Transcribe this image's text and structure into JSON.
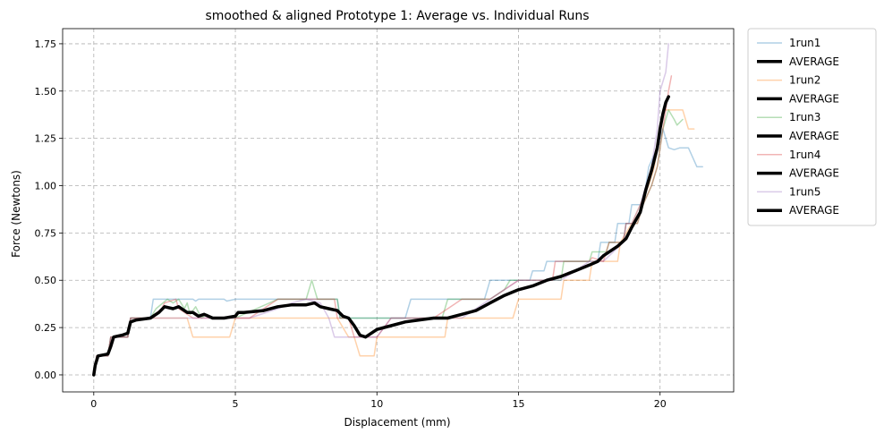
{
  "chart_data": {
    "type": "line",
    "title": "smoothed & aligned Prototype 1: Average vs. Individual Runs",
    "xlabel": "Displacement (mm)",
    "ylabel": "Force (Newtons)",
    "xlim": [
      -1.1,
      22.6
    ],
    "ylim": [
      -0.09,
      1.83
    ],
    "xticks": [
      0,
      5,
      10,
      15,
      20
    ],
    "xtick_labels": [
      "0",
      "5",
      "10",
      "15",
      "20"
    ],
    "yticks": [
      0.0,
      0.25,
      0.5,
      0.75,
      1.0,
      1.25,
      1.5,
      1.75
    ],
    "ytick_labels": [
      "0.00",
      "0.25",
      "0.50",
      "0.75",
      "1.00",
      "1.25",
      "1.50",
      "1.75"
    ],
    "grid": true,
    "legend_position": "outside-right",
    "legend": [
      {
        "label": "1run1",
        "color": "#1f77b4",
        "alpha": 0.35,
        "width": 1.5
      },
      {
        "label": "AVERAGE",
        "color": "#000000",
        "alpha": 1,
        "width": 3.5
      },
      {
        "label": "1run2",
        "color": "#ff7f0e",
        "alpha": 0.35,
        "width": 1.5
      },
      {
        "label": "AVERAGE",
        "color": "#000000",
        "alpha": 1,
        "width": 3.5
      },
      {
        "label": "1run3",
        "color": "#2ca02c",
        "alpha": 0.35,
        "width": 1.5
      },
      {
        "label": "AVERAGE",
        "color": "#000000",
        "alpha": 1,
        "width": 3.5
      },
      {
        "label": "1run4",
        "color": "#d62728",
        "alpha": 0.35,
        "width": 1.5
      },
      {
        "label": "AVERAGE",
        "color": "#000000",
        "alpha": 1,
        "width": 3.5
      },
      {
        "label": "1run5",
        "color": "#9467bd",
        "alpha": 0.35,
        "width": 1.5
      },
      {
        "label": "AVERAGE",
        "color": "#000000",
        "alpha": 1,
        "width": 3.5
      }
    ],
    "series": [
      {
        "name": "1run1",
        "color": "#1f77b4",
        "alpha": 0.35,
        "x": [
          0,
          0.1,
          0.5,
          0.6,
          1.2,
          1.3,
          2.0,
          2.1,
          3.5,
          3.6,
          3.7,
          4.6,
          4.7,
          5.0,
          5.1,
          6.5,
          6.6,
          8.6,
          8.7,
          9.3,
          9.4,
          10.0,
          11.0,
          11.2,
          12.5,
          12.6,
          13.8,
          14.0,
          15.4,
          15.5,
          15.9,
          16.0,
          16.7,
          17.8,
          17.9,
          18.4,
          18.5,
          18.9,
          19.0,
          19.4,
          19.6,
          19.9,
          20.1,
          20.3,
          20.5,
          20.7,
          21.0,
          21.3,
          21.5
        ],
        "y": [
          0,
          0.1,
          0.1,
          0.2,
          0.2,
          0.3,
          0.3,
          0.4,
          0.4,
          0.39,
          0.4,
          0.4,
          0.39,
          0.4,
          0.4,
          0.4,
          0.4,
          0.4,
          0.3,
          0.3,
          0.3,
          0.3,
          0.3,
          0.4,
          0.4,
          0.4,
          0.4,
          0.5,
          0.5,
          0.55,
          0.55,
          0.6,
          0.6,
          0.6,
          0.7,
          0.7,
          0.8,
          0.8,
          0.9,
          0.9,
          1.1,
          1.2,
          1.3,
          1.2,
          1.19,
          1.2,
          1.2,
          1.1,
          1.1
        ]
      },
      {
        "name": "1run2",
        "color": "#ff7f0e",
        "alpha": 0.35,
        "x": [
          0,
          0.1,
          0.5,
          0.6,
          1.2,
          1.3,
          2.0,
          2.3,
          3.3,
          3.5,
          4.8,
          5.0,
          5.5,
          6.0,
          8.0,
          8.5,
          8.6,
          9.0,
          9.2,
          9.4,
          9.9,
          10.0,
          10.5,
          11.0,
          12.4,
          12.5,
          14.0,
          14.8,
          15.0,
          16.0,
          16.5,
          16.6,
          17.5,
          17.6,
          18.5,
          18.6,
          19.0,
          19.3,
          19.6,
          19.8,
          20.0,
          20.1,
          20.3,
          20.8,
          21.0,
          21.2
        ],
        "y": [
          0,
          0.1,
          0.1,
          0.2,
          0.2,
          0.3,
          0.3,
          0.3,
          0.3,
          0.2,
          0.2,
          0.3,
          0.3,
          0.3,
          0.3,
          0.3,
          0.3,
          0.2,
          0.2,
          0.1,
          0.1,
          0.2,
          0.2,
          0.2,
          0.2,
          0.3,
          0.3,
          0.3,
          0.4,
          0.4,
          0.4,
          0.5,
          0.5,
          0.6,
          0.6,
          0.7,
          0.8,
          0.9,
          1.0,
          1.1,
          1.3,
          1.4,
          1.4,
          1.4,
          1.3,
          1.3
        ]
      },
      {
        "name": "1run3",
        "color": "#2ca02c",
        "alpha": 0.35,
        "x": [
          0,
          0.1,
          0.5,
          0.6,
          1.2,
          1.3,
          2.0,
          2.2,
          2.6,
          2.8,
          3.0,
          3.2,
          3.3,
          3.4,
          3.6,
          3.8,
          4.0,
          4.2,
          5.0,
          6.5,
          7.5,
          7.7,
          7.8,
          7.9,
          8.1,
          8.6,
          8.7,
          9.5,
          10.0,
          10.5,
          11.5,
          12.3,
          12.5,
          13.5,
          14.0,
          14.5,
          14.7,
          15.5,
          16.5,
          16.6,
          17.5,
          17.6,
          18.1,
          18.2,
          18.7,
          18.8,
          19.2,
          19.4,
          19.7,
          19.9,
          20.1,
          20.3,
          20.5,
          20.6,
          20.8
        ],
        "y": [
          0,
          0.1,
          0.1,
          0.2,
          0.2,
          0.3,
          0.3,
          0.35,
          0.4,
          0.38,
          0.4,
          0.35,
          0.38,
          0.32,
          0.36,
          0.3,
          0.32,
          0.3,
          0.3,
          0.4,
          0.4,
          0.5,
          0.45,
          0.4,
          0.4,
          0.4,
          0.3,
          0.3,
          0.3,
          0.3,
          0.3,
          0.3,
          0.4,
          0.4,
          0.4,
          0.45,
          0.5,
          0.5,
          0.5,
          0.6,
          0.6,
          0.65,
          0.65,
          0.7,
          0.7,
          0.8,
          0.8,
          0.9,
          1.0,
          1.1,
          1.3,
          1.4,
          1.35,
          1.32,
          1.35
        ]
      },
      {
        "name": "1run4",
        "color": "#d62728",
        "alpha": 0.35,
        "x": [
          0,
          0.1,
          0.5,
          0.6,
          1.2,
          1.3,
          2.0,
          2.4,
          2.5,
          2.9,
          3.0,
          3.3,
          3.5,
          4.5,
          5.0,
          5.5,
          6.5,
          7.5,
          8.5,
          8.6,
          9.0,
          9.2,
          9.5,
          10.0,
          10.5,
          12.0,
          12.5,
          13.0,
          13.5,
          14.0,
          15.0,
          15.5,
          16.2,
          16.3,
          17.5,
          17.6,
          18.0,
          18.2,
          18.7,
          18.8,
          19.2,
          19.4,
          19.7,
          19.9,
          20.1,
          20.3,
          20.4
        ],
        "y": [
          0,
          0.1,
          0.1,
          0.2,
          0.2,
          0.3,
          0.3,
          0.35,
          0.38,
          0.4,
          0.35,
          0.32,
          0.3,
          0.3,
          0.3,
          0.3,
          0.4,
          0.4,
          0.4,
          0.3,
          0.3,
          0.2,
          0.2,
          0.2,
          0.3,
          0.3,
          0.35,
          0.4,
          0.4,
          0.4,
          0.5,
          0.5,
          0.5,
          0.6,
          0.6,
          0.62,
          0.6,
          0.7,
          0.7,
          0.8,
          0.8,
          0.9,
          1.0,
          1.1,
          1.3,
          1.5,
          1.58
        ]
      },
      {
        "name": "1run5",
        "color": "#9467bd",
        "alpha": 0.35,
        "x": [
          0,
          0.1,
          0.5,
          0.6,
          1.2,
          1.3,
          2.0,
          2.5,
          3.0,
          3.3,
          3.5,
          4.5,
          5.0,
          5.5,
          6.5,
          7.0,
          7.5,
          8.0,
          8.3,
          8.5,
          8.7,
          9.0,
          9.3,
          9.5,
          10.0,
          10.5,
          12.0,
          12.5,
          13.0,
          14.0,
          15.0,
          15.5,
          16.0,
          16.5,
          17.0,
          17.5,
          18.0,
          18.7,
          18.8,
          19.0,
          19.3,
          19.5,
          19.7,
          19.9,
          20.0,
          20.2,
          20.3
        ],
        "y": [
          0,
          0.1,
          0.1,
          0.2,
          0.2,
          0.3,
          0.3,
          0.3,
          0.3,
          0.3,
          0.3,
          0.3,
          0.3,
          0.3,
          0.35,
          0.38,
          0.4,
          0.38,
          0.3,
          0.2,
          0.2,
          0.2,
          0.2,
          0.2,
          0.2,
          0.3,
          0.3,
          0.3,
          0.3,
          0.4,
          0.5,
          0.5,
          0.5,
          0.5,
          0.55,
          0.6,
          0.6,
          0.7,
          0.8,
          0.8,
          0.9,
          1.0,
          1.1,
          1.3,
          1.5,
          1.6,
          1.75
        ]
      },
      {
        "name": "AVERAGE",
        "color": "#000000",
        "alpha": 1,
        "x": [
          0,
          0.05,
          0.15,
          0.5,
          0.6,
          0.7,
          1.0,
          1.2,
          1.3,
          1.5,
          2.0,
          2.1,
          2.3,
          2.5,
          2.8,
          3.0,
          3.3,
          3.5,
          3.7,
          3.9,
          4.2,
          4.6,
          5.0,
          5.1,
          5.3,
          6.0,
          6.5,
          7.0,
          7.5,
          7.8,
          8.0,
          8.3,
          8.6,
          8.8,
          9.0,
          9.2,
          9.4,
          9.6,
          10.0,
          10.5,
          11.0,
          11.5,
          12.0,
          12.5,
          13.0,
          13.5,
          14.0,
          14.5,
          15.0,
          15.5,
          16.0,
          16.5,
          17.0,
          17.5,
          17.8,
          18.0,
          18.5,
          18.8,
          19.0,
          19.3,
          19.5,
          19.7,
          19.9,
          20.0,
          20.1,
          20.2,
          20.3
        ],
        "y": [
          0,
          0.05,
          0.1,
          0.11,
          0.15,
          0.2,
          0.21,
          0.22,
          0.28,
          0.29,
          0.3,
          0.31,
          0.33,
          0.36,
          0.35,
          0.36,
          0.33,
          0.33,
          0.31,
          0.32,
          0.3,
          0.3,
          0.31,
          0.33,
          0.33,
          0.34,
          0.36,
          0.37,
          0.37,
          0.38,
          0.36,
          0.35,
          0.34,
          0.31,
          0.3,
          0.26,
          0.21,
          0.2,
          0.24,
          0.26,
          0.28,
          0.29,
          0.3,
          0.3,
          0.32,
          0.34,
          0.38,
          0.42,
          0.45,
          0.47,
          0.5,
          0.52,
          0.55,
          0.58,
          0.6,
          0.63,
          0.68,
          0.72,
          0.78,
          0.86,
          0.98,
          1.08,
          1.2,
          1.3,
          1.38,
          1.44,
          1.47
        ]
      }
    ]
  }
}
